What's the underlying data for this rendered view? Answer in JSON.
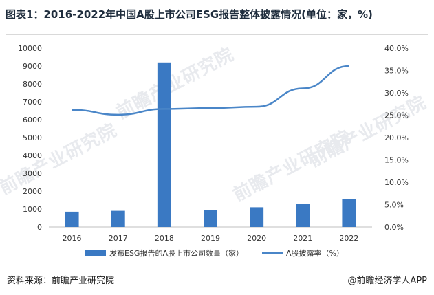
{
  "title": "图表1：2016-2022年中国A股上市公司ESG报告整体披露情况(单位：家，%)",
  "footer": {
    "source": "资料来源：前瞻产业研究院",
    "brand": "@前瞻经济学人APP"
  },
  "watermark": "前瞻产业研究院",
  "colors": {
    "bar": "#3a79c3",
    "line": "#4a86c8",
    "accent": "#3a79c3"
  },
  "chart_data": {
    "type": "bar",
    "categories": [
      "2016",
      "2017",
      "2018",
      "2019",
      "2020",
      "2021",
      "2022"
    ],
    "series": [
      {
        "name": "发布ESG报告的A股上市公司数量（家）",
        "type": "bar",
        "axis": "left",
        "values": [
          850,
          900,
          9200,
          950,
          1100,
          1300,
          1550
        ]
      },
      {
        "name": "A股披露率（%）",
        "type": "line",
        "axis": "right",
        "values": [
          26.2,
          25.1,
          26.4,
          26.6,
          26.9,
          31.0,
          36.0
        ]
      }
    ],
    "ylim": [
      0,
      10000
    ],
    "y2lim": [
      0,
      40
    ],
    "yticks": [
      "0",
      "1000",
      "2000",
      "3000",
      "4000",
      "5000",
      "6000",
      "7000",
      "8000",
      "9000",
      "10000"
    ],
    "y2ticks": [
      "0.0%",
      "5.0%",
      "10.0%",
      "15.0%",
      "20.0%",
      "25.0%",
      "30.0%",
      "35.0%",
      "40.0%"
    ],
    "legend_position": "bottom",
    "grid": false
  }
}
